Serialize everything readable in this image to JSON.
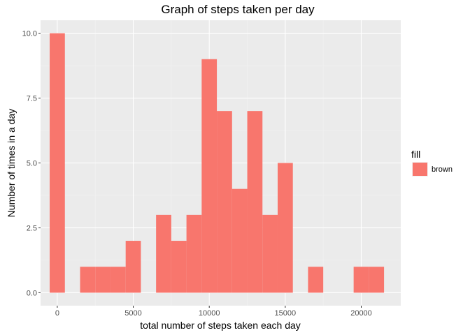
{
  "chart_data": {
    "type": "bar",
    "title": "Graph of steps taken per day",
    "xlabel": "total number of steps taken each day",
    "ylabel": "Number of times in a day",
    "xlim": [
      -1100,
      22600
    ],
    "ylim": [
      -0.5,
      10.5
    ],
    "x_ticks": [
      0,
      5000,
      10000,
      15000,
      20000
    ],
    "x_tick_labels": [
      "0",
      "5000",
      "10000",
      "15000",
      "20000"
    ],
    "y_ticks": [
      0,
      2.5,
      5,
      7.5,
      10
    ],
    "y_tick_labels": [
      "0.0",
      "2.5",
      "5.0",
      "7.5",
      "10.0"
    ],
    "bin_width": 1000,
    "bins": [
      {
        "start": -500,
        "end": 500,
        "count": 10
      },
      {
        "start": 500,
        "end": 1500,
        "count": 0
      },
      {
        "start": 1500,
        "end": 2500,
        "count": 1
      },
      {
        "start": 2500,
        "end": 3500,
        "count": 1
      },
      {
        "start": 3500,
        "end": 4500,
        "count": 1
      },
      {
        "start": 4500,
        "end": 5500,
        "count": 2
      },
      {
        "start": 5500,
        "end": 6500,
        "count": 0
      },
      {
        "start": 6500,
        "end": 7500,
        "count": 3
      },
      {
        "start": 7500,
        "end": 8500,
        "count": 2
      },
      {
        "start": 8500,
        "end": 9500,
        "count": 3
      },
      {
        "start": 9500,
        "end": 10500,
        "count": 9
      },
      {
        "start": 10500,
        "end": 11500,
        "count": 7
      },
      {
        "start": 11500,
        "end": 12500,
        "count": 4
      },
      {
        "start": 12500,
        "end": 13500,
        "count": 7
      },
      {
        "start": 13500,
        "end": 14500,
        "count": 3
      },
      {
        "start": 14500,
        "end": 15500,
        "count": 5
      },
      {
        "start": 15500,
        "end": 16500,
        "count": 0
      },
      {
        "start": 16500,
        "end": 17500,
        "count": 1
      },
      {
        "start": 17500,
        "end": 18500,
        "count": 0
      },
      {
        "start": 18500,
        "end": 19500,
        "count": 0
      },
      {
        "start": 19500,
        "end": 20500,
        "count": 1
      },
      {
        "start": 20500,
        "end": 21500,
        "count": 1
      }
    ],
    "legend": {
      "title": "fill",
      "entries": [
        {
          "label": "brown",
          "color": "#F8766D"
        }
      ],
      "position": "right"
    },
    "grid": true,
    "bar_color": "#F8766D",
    "panel_color": "#EBEBEB"
  }
}
